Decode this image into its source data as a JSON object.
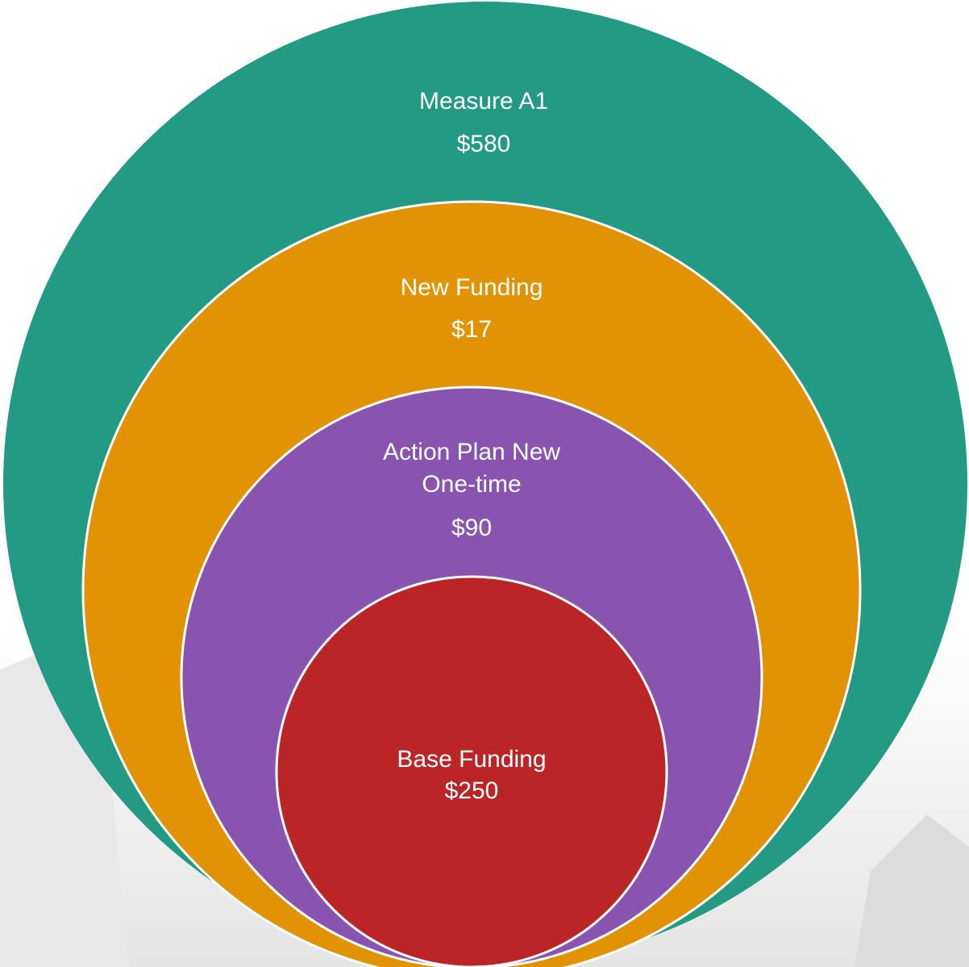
{
  "nodes": [
    {
      "label": [
        "Measure A1"
      ],
      "value": "$580"
    },
    {
      "label": [
        "New Funding"
      ],
      "value": "$17"
    },
    {
      "label": [
        "Action Plan New",
        "One-time"
      ],
      "value": "$90"
    },
    {
      "label": [
        "Base Funding"
      ],
      "value": "$250"
    }
  ]
}
